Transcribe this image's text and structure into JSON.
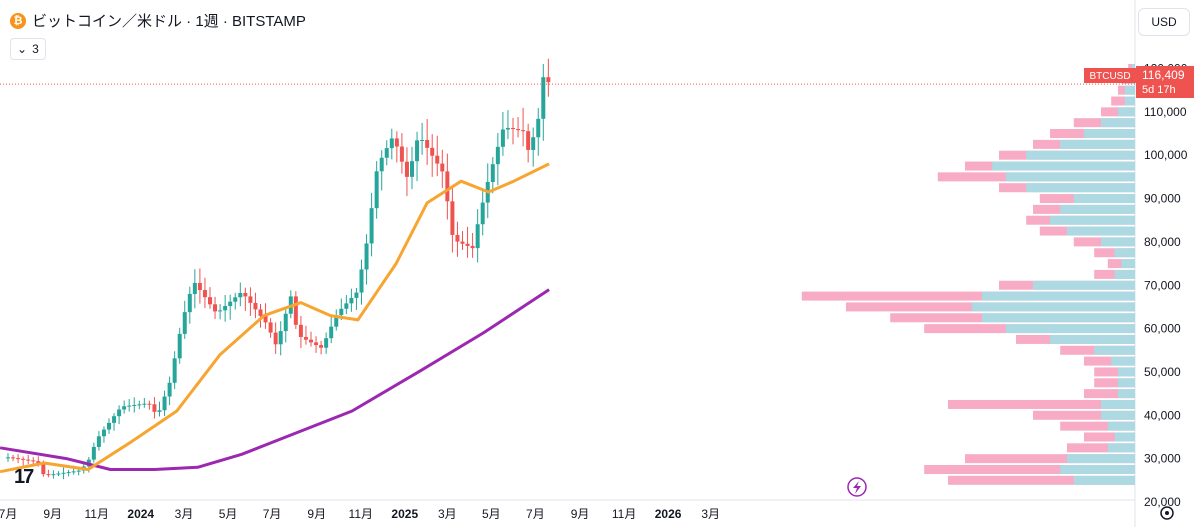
{
  "header": {
    "title": "ビットコイン／米ドル · 1週 · BITSTAMP",
    "coin_symbol": "₿"
  },
  "indicators_toggle": {
    "count": "3",
    "icon": "chevron-down-icon"
  },
  "currency_button": {
    "label": "USD"
  },
  "price_tag": {
    "symbol": "BTCUSD",
    "price": "116,409",
    "countdown": "5d 17h"
  },
  "logo": {
    "text": "17"
  },
  "colors": {
    "up": "#26a69a",
    "down": "#ef5350",
    "ma_short": "#f7a430",
    "ma_long": "#9c27b0",
    "vp_up": "#9fe0e6",
    "vp_down": "#f48fb1",
    "price_line": "#ef5350"
  },
  "chart_data": {
    "type": "candlestick",
    "interval": "1週",
    "ylim": [
      20000,
      125000
    ],
    "y_ticks": [
      20000,
      30000,
      40000,
      50000,
      60000,
      70000,
      80000,
      90000,
      100000,
      110000,
      120000
    ],
    "y_tick_labels": [
      "20,000",
      "30,000",
      "40,000",
      "50,000",
      "60,000",
      "70,000",
      "80,000",
      "90,000",
      "100,000",
      "110,000",
      "120,000"
    ],
    "x_range": [
      "2023-07",
      "2026-03"
    ],
    "x_ticks": [
      {
        "date": "2023-07",
        "label": "7月"
      },
      {
        "date": "2023-09",
        "label": "9月"
      },
      {
        "date": "2023-11",
        "label": "11月"
      },
      {
        "date": "2024-01",
        "label": "2024"
      },
      {
        "date": "2024-03",
        "label": "3月"
      },
      {
        "date": "2024-05",
        "label": "5月"
      },
      {
        "date": "2024-07",
        "label": "7月"
      },
      {
        "date": "2024-09",
        "label": "9月"
      },
      {
        "date": "2024-11",
        "label": "11月"
      },
      {
        "date": "2025-01",
        "label": "2025"
      },
      {
        "date": "2025-03",
        "label": "3月"
      },
      {
        "date": "2025-05",
        "label": "5月"
      },
      {
        "date": "2025-07",
        "label": "7月"
      },
      {
        "date": "2025-09",
        "label": "9月"
      },
      {
        "date": "2025-11",
        "label": "11月"
      },
      {
        "date": "2026-01",
        "label": "2026"
      },
      {
        "date": "2026-03",
        "label": "3月"
      }
    ],
    "close_anchors": [
      [
        "2023-07-01",
        30300
      ],
      [
        "2023-08-10",
        29300
      ],
      [
        "2023-08-20",
        26100
      ],
      [
        "2023-10-10",
        27300
      ],
      [
        "2023-10-22",
        30000
      ],
      [
        "2023-11-01",
        34500
      ],
      [
        "2023-12-05",
        42000
      ],
      [
        "2024-01-12",
        42800
      ],
      [
        "2024-01-24",
        39800
      ],
      [
        "2024-02-10",
        47500
      ],
      [
        "2024-02-28",
        62000
      ],
      [
        "2024-03-14",
        71000
      ],
      [
        "2024-04-15",
        63500
      ],
      [
        "2024-05-20",
        68500
      ],
      [
        "2024-06-24",
        61000
      ],
      [
        "2024-07-07",
        56000
      ],
      [
        "2024-07-28",
        68000
      ],
      [
        "2024-08-05",
        58500
      ],
      [
        "2024-09-08",
        55500
      ],
      [
        "2024-09-29",
        63500
      ],
      [
        "2024-10-27",
        68500
      ],
      [
        "2024-11-10",
        80500
      ],
      [
        "2024-11-24",
        97500
      ],
      [
        "2024-12-16",
        104500
      ],
      [
        "2025-01-05",
        94500
      ],
      [
        "2025-01-20",
        104800
      ],
      [
        "2025-02-23",
        96000
      ],
      [
        "2025-03-09",
        80500
      ],
      [
        "2025-04-06",
        78500
      ],
      [
        "2025-04-13",
        85000
      ],
      [
        "2025-04-27",
        94500
      ],
      [
        "2025-05-18",
        106500
      ],
      [
        "2025-06-15",
        105500
      ],
      [
        "2025-06-22",
        100500
      ],
      [
        "2025-07-06",
        109000
      ],
      [
        "2025-07-13",
        119500
      ],
      [
        "2025-07-20",
        116409
      ]
    ],
    "ma_short": [
      [
        "2023-06-20",
        27000
      ],
      [
        "2023-08-20",
        29000
      ],
      [
        "2023-10-20",
        27500
      ],
      [
        "2023-12-20",
        34000
      ],
      [
        "2024-02-20",
        41000
      ],
      [
        "2024-04-20",
        54000
      ],
      [
        "2024-06-20",
        63000
      ],
      [
        "2024-08-10",
        66000
      ],
      [
        "2024-09-20",
        63000
      ],
      [
        "2024-10-28",
        62000
      ],
      [
        "2024-12-20",
        75000
      ],
      [
        "2025-02-01",
        89000
      ],
      [
        "2025-03-20",
        94000
      ],
      [
        "2025-04-27",
        91500
      ],
      [
        "2025-06-01",
        94000
      ],
      [
        "2025-07-20",
        98000
      ]
    ],
    "ma_long": [
      [
        "2023-06-20",
        32500
      ],
      [
        "2023-09-20",
        30000
      ],
      [
        "2023-11-20",
        27500
      ],
      [
        "2024-01-20",
        27500
      ],
      [
        "2024-03-20",
        28000
      ],
      [
        "2024-05-20",
        31000
      ],
      [
        "2024-07-20",
        35000
      ],
      [
        "2024-10-20",
        41000
      ],
      [
        "2025-01-20",
        50000
      ],
      [
        "2025-04-20",
        59000
      ],
      [
        "2025-07-20",
        69000
      ]
    ],
    "volume_profile": [
      {
        "price": 25000,
        "up": 0.18,
        "down": 0.55
      },
      {
        "price": 27500,
        "up": 0.22,
        "down": 0.62
      },
      {
        "price": 30000,
        "up": 0.2,
        "down": 0.5
      },
      {
        "price": 32500,
        "up": 0.08,
        "down": 0.2
      },
      {
        "price": 35000,
        "up": 0.06,
        "down": 0.15
      },
      {
        "price": 37500,
        "up": 0.08,
        "down": 0.22
      },
      {
        "price": 40000,
        "up": 0.1,
        "down": 0.3
      },
      {
        "price": 42500,
        "up": 0.1,
        "down": 0.55
      },
      {
        "price": 45000,
        "up": 0.05,
        "down": 0.15
      },
      {
        "price": 47500,
        "up": 0.05,
        "down": 0.12
      },
      {
        "price": 50000,
        "up": 0.05,
        "down": 0.12
      },
      {
        "price": 52500,
        "up": 0.07,
        "down": 0.15
      },
      {
        "price": 55000,
        "up": 0.12,
        "down": 0.22
      },
      {
        "price": 57500,
        "up": 0.25,
        "down": 0.35
      },
      {
        "price": 60000,
        "up": 0.38,
        "down": 0.62
      },
      {
        "price": 62500,
        "up": 0.45,
        "down": 0.72
      },
      {
        "price": 65000,
        "up": 0.48,
        "down": 0.85
      },
      {
        "price": 67500,
        "up": 0.45,
        "down": 0.98
      },
      {
        "price": 70000,
        "up": 0.3,
        "down": 0.4
      },
      {
        "price": 72500,
        "up": 0.06,
        "down": 0.12
      },
      {
        "price": 75000,
        "up": 0.04,
        "down": 0.08
      },
      {
        "price": 77500,
        "up": 0.06,
        "down": 0.12
      },
      {
        "price": 80000,
        "up": 0.1,
        "down": 0.18
      },
      {
        "price": 82500,
        "up": 0.2,
        "down": 0.28
      },
      {
        "price": 85000,
        "up": 0.25,
        "down": 0.32
      },
      {
        "price": 87500,
        "up": 0.22,
        "down": 0.3
      },
      {
        "price": 90000,
        "up": 0.18,
        "down": 0.28
      },
      {
        "price": 92500,
        "up": 0.32,
        "down": 0.4
      },
      {
        "price": 95000,
        "up": 0.38,
        "down": 0.58
      },
      {
        "price": 97500,
        "up": 0.42,
        "down": 0.5
      },
      {
        "price": 100000,
        "up": 0.32,
        "down": 0.4
      },
      {
        "price": 102500,
        "up": 0.22,
        "down": 0.3
      },
      {
        "price": 105000,
        "up": 0.15,
        "down": 0.25
      },
      {
        "price": 107500,
        "up": 0.1,
        "down": 0.18
      },
      {
        "price": 110000,
        "up": 0.05,
        "down": 0.1
      },
      {
        "price": 112500,
        "up": 0.03,
        "down": 0.07
      },
      {
        "price": 115000,
        "up": 0.03,
        "down": 0.05
      },
      {
        "price": 117500,
        "up": 0.02,
        "down": 0.04
      },
      {
        "price": 120000,
        "up": 0.01,
        "down": 0.02
      }
    ],
    "last_price": 116409
  }
}
